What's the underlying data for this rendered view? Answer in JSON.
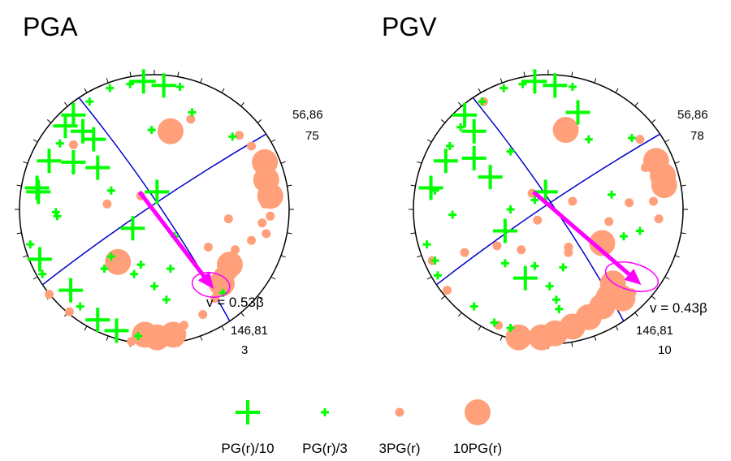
{
  "chart_data": [
    {
      "type": "stereonet",
      "title": "PGA",
      "plane1_label": "56,86",
      "plane1_value": "75",
      "plane2_label": "146,81",
      "plane2_value": "3",
      "velocity_text": "v = 0.53β",
      "arrow": {
        "from_x": -0.11,
        "from_y": 0.13,
        "to_x": 0.44,
        "to_y": -0.59
      },
      "ellipse": {
        "cx": 0.42,
        "cy": -0.56,
        "rx": 0.14,
        "ry": 0.09,
        "rotation_deg": 10
      },
      "markers": [
        {
          "x": -0.08,
          "y": 0.95,
          "k": "c10"
        },
        {
          "x": -0.18,
          "y": 0.93,
          "k": "c3"
        },
        {
          "x": 0.07,
          "y": 0.92,
          "k": "c10"
        },
        {
          "x": 0.19,
          "y": 0.91,
          "k": "c3"
        },
        {
          "x": -0.33,
          "y": 0.9,
          "k": "c3"
        },
        {
          "x": -0.48,
          "y": 0.8,
          "k": "c3"
        },
        {
          "x": -0.6,
          "y": 0.7,
          "k": "c10"
        },
        {
          "x": -0.66,
          "y": 0.62,
          "k": "c10"
        },
        {
          "x": -0.7,
          "y": 0.49,
          "k": "c3"
        },
        {
          "x": -0.78,
          "y": 0.36,
          "k": "c10"
        },
        {
          "x": -0.87,
          "y": 0.16,
          "k": "c10"
        },
        {
          "x": -0.86,
          "y": 0.13,
          "k": "c10"
        },
        {
          "x": -0.73,
          "y": -0.02,
          "k": "c3"
        },
        {
          "x": -0.72,
          "y": -0.05,
          "k": "c3"
        },
        {
          "x": -0.92,
          "y": -0.26,
          "k": "c3"
        },
        {
          "x": -0.85,
          "y": -0.37,
          "k": "c10"
        },
        {
          "x": -0.83,
          "y": -0.48,
          "k": "c3"
        },
        {
          "x": -0.62,
          "y": -0.6,
          "k": "c10"
        },
        {
          "x": -0.55,
          "y": -0.72,
          "k": "c3"
        },
        {
          "x": -0.42,
          "y": -0.82,
          "k": "c10"
        },
        {
          "x": -0.28,
          "y": -0.9,
          "k": "c10"
        },
        {
          "x": -0.12,
          "y": -0.94,
          "k": "c3"
        },
        {
          "x": 0.28,
          "y": 0.72,
          "k": "c3"
        },
        {
          "x": 0.58,
          "y": 0.54,
          "k": "c3"
        },
        {
          "x": -0.53,
          "y": 0.58,
          "k": "c10"
        },
        {
          "x": -0.6,
          "y": 0.35,
          "k": "c10"
        },
        {
          "x": -0.42,
          "y": 0.31,
          "k": "c10"
        },
        {
          "x": -0.45,
          "y": 0.52,
          "k": "c10"
        },
        {
          "x": -0.32,
          "y": 0.14,
          "k": "c3"
        },
        {
          "x": 0.02,
          "y": 0.13,
          "k": "c10"
        },
        {
          "x": -0.16,
          "y": -0.14,
          "k": "c10"
        },
        {
          "x": -0.32,
          "y": -0.35,
          "k": "c3"
        },
        {
          "x": -0.1,
          "y": -0.41,
          "k": "c3"
        },
        {
          "x": -0.37,
          "y": -0.44,
          "k": "c3"
        },
        {
          "x": -0.15,
          "y": -0.48,
          "k": "c3"
        },
        {
          "x": 0.0,
          "y": -0.57,
          "k": "c3"
        },
        {
          "x": 0.09,
          "y": -0.67,
          "k": "c3"
        },
        {
          "x": 0.12,
          "y": -0.44,
          "k": "c3"
        },
        {
          "x": -0.02,
          "y": 0.59,
          "k": "c3"
        },
        {
          "x": 0.15,
          "y": -0.2,
          "k": "c3"
        },
        {
          "x": 0.51,
          "y": -0.62,
          "k": "c3"
        },
        {
          "x": 0.27,
          "y": 0.67,
          "k": "p3"
        },
        {
          "x": 0.12,
          "y": 0.58,
          "k": "p10"
        },
        {
          "x": 0.63,
          "y": 0.55,
          "k": "p3"
        },
        {
          "x": 0.72,
          "y": 0.47,
          "k": "p3"
        },
        {
          "x": 0.82,
          "y": 0.35,
          "k": "p10"
        },
        {
          "x": 0.83,
          "y": 0.22,
          "k": "p10"
        },
        {
          "x": 0.86,
          "y": 0.1,
          "k": "p10"
        },
        {
          "x": 0.82,
          "y": 0.04,
          "k": "p3"
        },
        {
          "x": 0.8,
          "y": -0.1,
          "k": "p3"
        },
        {
          "x": 0.83,
          "y": -0.18,
          "k": "p3"
        },
        {
          "x": 0.72,
          "y": -0.23,
          "k": "p3"
        },
        {
          "x": 0.55,
          "y": -0.07,
          "k": "p3"
        },
        {
          "x": 0.4,
          "y": -0.28,
          "k": "p3"
        },
        {
          "x": 0.56,
          "y": -0.41,
          "k": "p10"
        },
        {
          "x": 0.58,
          "y": -0.48,
          "k": "p3"
        },
        {
          "x": 0.5,
          "y": -0.55,
          "k": "p10"
        },
        {
          "x": 0.45,
          "y": -0.66,
          "k": "p3"
        },
        {
          "x": 0.36,
          "y": -0.78,
          "k": "p3"
        },
        {
          "x": 0.22,
          "y": -0.86,
          "k": "p3"
        },
        {
          "x": 0.08,
          "y": -0.9,
          "k": "p3"
        },
        {
          "x": 0.02,
          "y": -0.95,
          "k": "p10"
        },
        {
          "x": -0.07,
          "y": -0.93,
          "k": "p10"
        },
        {
          "x": 0.14,
          "y": -0.93,
          "k": "p10"
        },
        {
          "x": -0.17,
          "y": -0.98,
          "k": "p3"
        },
        {
          "x": -0.78,
          "y": -0.63,
          "k": "p3"
        },
        {
          "x": -0.63,
          "y": -0.76,
          "k": "p3"
        },
        {
          "x": -0.27,
          "y": -0.39,
          "k": "p10"
        },
        {
          "x": -0.35,
          "y": 0.04,
          "k": "p3"
        },
        {
          "x": -0.6,
          "y": 0.48,
          "k": "p3"
        },
        {
          "x": -0.1,
          "y": 0.1,
          "k": "p3"
        },
        {
          "x": 0.48,
          "y": -0.47,
          "k": "p3"
        },
        {
          "x": 0.6,
          "y": -0.3,
          "k": "p3"
        },
        {
          "x": 0.86,
          "y": -0.05,
          "k": "p3"
        }
      ]
    },
    {
      "type": "stereonet",
      "title": "PGV",
      "plane1_label": "56,86",
      "plane1_value": "78",
      "plane2_label": "146,81",
      "plane2_value": "10",
      "velocity_text": "v = 0.43β",
      "arrow": {
        "from_x": -0.11,
        "from_y": 0.13,
        "to_x": 0.69,
        "to_y": -0.56
      },
      "ellipse": {
        "cx": 0.62,
        "cy": -0.5,
        "rx": 0.2,
        "ry": 0.1,
        "rotation_deg": 15
      },
      "markers": [
        {
          "x": -0.1,
          "y": 0.95,
          "k": "c10"
        },
        {
          "x": -0.19,
          "y": 0.93,
          "k": "c3"
        },
        {
          "x": 0.05,
          "y": 0.92,
          "k": "c10"
        },
        {
          "x": 0.18,
          "y": 0.91,
          "k": "c3"
        },
        {
          "x": -0.33,
          "y": 0.9,
          "k": "c3"
        },
        {
          "x": -0.49,
          "y": 0.8,
          "k": "c3"
        },
        {
          "x": -0.62,
          "y": 0.7,
          "k": "c10"
        },
        {
          "x": -0.65,
          "y": 0.61,
          "k": "c3"
        },
        {
          "x": -0.73,
          "y": 0.47,
          "k": "c3"
        },
        {
          "x": -0.76,
          "y": 0.36,
          "k": "c10"
        },
        {
          "x": -0.87,
          "y": 0.16,
          "k": "c10"
        },
        {
          "x": -0.84,
          "y": 0.14,
          "k": "c3"
        },
        {
          "x": -0.71,
          "y": -0.04,
          "k": "c3"
        },
        {
          "x": -0.9,
          "y": -0.26,
          "k": "c3"
        },
        {
          "x": -0.84,
          "y": -0.38,
          "k": "c3"
        },
        {
          "x": -0.82,
          "y": -0.49,
          "k": "c3"
        },
        {
          "x": -0.55,
          "y": -0.72,
          "k": "c3"
        },
        {
          "x": -0.4,
          "y": -0.84,
          "k": "c3"
        },
        {
          "x": -0.28,
          "y": -0.88,
          "k": "c3"
        },
        {
          "x": 0.22,
          "y": 0.72,
          "k": "c10"
        },
        {
          "x": 0.62,
          "y": 0.53,
          "k": "c3"
        },
        {
          "x": -0.55,
          "y": 0.58,
          "k": "c10"
        },
        {
          "x": -0.55,
          "y": 0.38,
          "k": "c10"
        },
        {
          "x": -0.43,
          "y": 0.24,
          "k": "c10"
        },
        {
          "x": -0.28,
          "y": 0.43,
          "k": "c3"
        },
        {
          "x": -0.02,
          "y": 0.13,
          "k": "c10"
        },
        {
          "x": -0.1,
          "y": 0.07,
          "k": "c3"
        },
        {
          "x": -0.28,
          "y": 0.0,
          "k": "c3"
        },
        {
          "x": -0.32,
          "y": -0.16,
          "k": "c10"
        },
        {
          "x": -0.32,
          "y": -0.4,
          "k": "c3"
        },
        {
          "x": -0.1,
          "y": -0.42,
          "k": "c3"
        },
        {
          "x": -0.17,
          "y": -0.51,
          "k": "c10"
        },
        {
          "x": 0.01,
          "y": -0.57,
          "k": "c3"
        },
        {
          "x": 0.06,
          "y": -0.67,
          "k": "c3"
        },
        {
          "x": 0.08,
          "y": -0.74,
          "k": "c3"
        },
        {
          "x": 0.11,
          "y": -0.43,
          "k": "c3"
        },
        {
          "x": 0.47,
          "y": 0.11,
          "k": "c3"
        },
        {
          "x": 0.56,
          "y": -0.2,
          "k": "c3"
        },
        {
          "x": 0.68,
          "y": -0.16,
          "k": "c3"
        },
        {
          "x": 0.3,
          "y": 0.52,
          "k": "c3"
        },
        {
          "x": 0.13,
          "y": 0.59,
          "k": "p10"
        },
        {
          "x": 0.68,
          "y": 0.52,
          "k": "p3"
        },
        {
          "x": 0.8,
          "y": 0.36,
          "k": "p10"
        },
        {
          "x": 0.85,
          "y": 0.25,
          "k": "p10"
        },
        {
          "x": 0.86,
          "y": 0.18,
          "k": "p10"
        },
        {
          "x": 0.72,
          "y": 0.31,
          "k": "p3"
        },
        {
          "x": 0.6,
          "y": 0.05,
          "k": "p3"
        },
        {
          "x": 0.78,
          "y": 0.06,
          "k": "p3"
        },
        {
          "x": 0.82,
          "y": -0.07,
          "k": "p3"
        },
        {
          "x": 0.45,
          "y": -0.09,
          "k": "p3"
        },
        {
          "x": 0.18,
          "y": 0.06,
          "k": "p3"
        },
        {
          "x": 0.15,
          "y": -0.28,
          "k": "p3"
        },
        {
          "x": 0.4,
          "y": -0.25,
          "k": "p10"
        },
        {
          "x": 0.48,
          "y": -0.55,
          "k": "p10"
        },
        {
          "x": 0.45,
          "y": -0.65,
          "k": "p10"
        },
        {
          "x": 0.55,
          "y": -0.66,
          "k": "p10"
        },
        {
          "x": 0.3,
          "y": -0.8,
          "k": "p10"
        },
        {
          "x": 0.18,
          "y": -0.87,
          "k": "p10"
        },
        {
          "x": 0.05,
          "y": -0.92,
          "k": "p10"
        },
        {
          "x": -0.05,
          "y": -0.95,
          "k": "p10"
        },
        {
          "x": -0.22,
          "y": -0.95,
          "k": "p10"
        },
        {
          "x": 0.4,
          "y": -0.72,
          "k": "p10"
        },
        {
          "x": 0.62,
          "y": -0.62,
          "k": "p3"
        },
        {
          "x": -0.12,
          "y": 0.12,
          "k": "p3"
        },
        {
          "x": -0.38,
          "y": -0.27,
          "k": "p3"
        },
        {
          "x": -0.2,
          "y": -0.3,
          "k": "p3"
        },
        {
          "x": -0.62,
          "y": -0.32,
          "k": "p3"
        },
        {
          "x": -0.75,
          "y": -0.6,
          "k": "p3"
        },
        {
          "x": -0.86,
          "y": -0.38,
          "k": "p3"
        },
        {
          "x": -0.37,
          "y": -0.86,
          "k": "p3"
        },
        {
          "x": -0.48,
          "y": 0.8,
          "k": "p3"
        },
        {
          "x": 0.15,
          "y": -0.32,
          "k": "p3"
        },
        {
          "x": -0.08,
          "y": -0.08,
          "k": "p3"
        }
      ]
    }
  ],
  "legend": {
    "items": [
      {
        "label": "PG(r)/10",
        "k": "c10"
      },
      {
        "label": "PG(r)/3",
        "k": "c3"
      },
      {
        "label": "3PG(r)",
        "k": "p3"
      },
      {
        "label": "10PG(r)",
        "k": "p10"
      }
    ]
  },
  "colors": {
    "cross": "#00ff00",
    "dot": "#ffa07a",
    "plane": "#0000cc",
    "arrow": "#ff00ff",
    "frame": "#000000"
  }
}
